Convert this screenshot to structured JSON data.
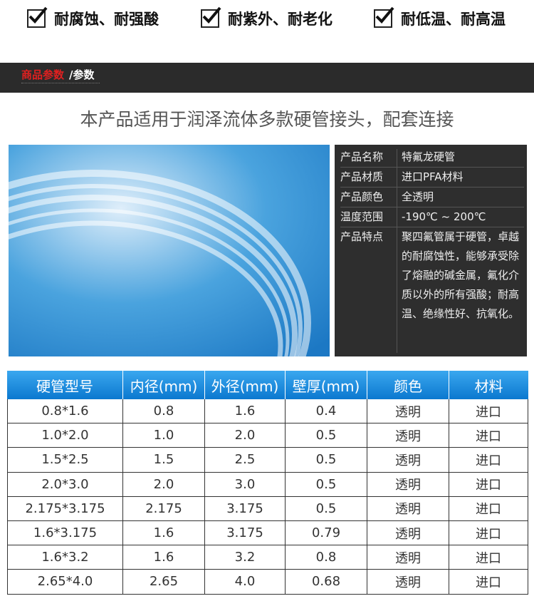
{
  "features": [
    "耐腐蚀、耐强酸",
    "耐紫外、耐老化",
    "耐低温、耐高温"
  ],
  "banner": {
    "title": "商品参数",
    "suffix": "/参数"
  },
  "subtitle": "本产品适用于润泽流体多款硬管接头，配套连接",
  "specs": [
    {
      "label": "产品名称",
      "value": "特氟龙硬管"
    },
    {
      "label": "产品材质",
      "value": "进口PFA材料"
    },
    {
      "label": "产品颜色",
      "value": "全透明"
    },
    {
      "label": "温度范围",
      "value": "-190℃ ~ 200℃"
    },
    {
      "label": "产品特点",
      "value": "聚四氟管属于硬管，卓越的耐腐蚀性，能够承受除了熔融的碱金属，氟化介质以外的所有强酸；耐高温、绝缘性好、抗氧化。"
    }
  ],
  "table": {
    "headers": [
      "硬管型号",
      "内径(mm)",
      "外径(mm)",
      "壁厚(mm)",
      "颜色",
      "材料"
    ],
    "rows": [
      [
        "0.8*1.6",
        "0.8",
        "1.6",
        "0.4",
        "透明",
        "进口"
      ],
      [
        "1.0*2.0",
        "1.0",
        "2.0",
        "0.5",
        "透明",
        "进口"
      ],
      [
        "1.5*2.5",
        "1.5",
        "2.5",
        "0.5",
        "透明",
        "进口"
      ],
      [
        "2.0*3.0",
        "2.0",
        "3.0",
        "0.5",
        "透明",
        "进口"
      ],
      [
        "2.175*3.175",
        "2.175",
        "3.175",
        "0.5",
        "透明",
        "进口"
      ],
      [
        "1.6*3.175",
        "1.6",
        "3.175",
        "0.79",
        "透明",
        "进口"
      ],
      [
        "1.6*3.2",
        "1.6",
        "3.2",
        "0.8",
        "透明",
        "进口"
      ],
      [
        "2.65*4.0",
        "2.65",
        "4.0",
        "0.68",
        "透明",
        "进口"
      ]
    ]
  }
}
